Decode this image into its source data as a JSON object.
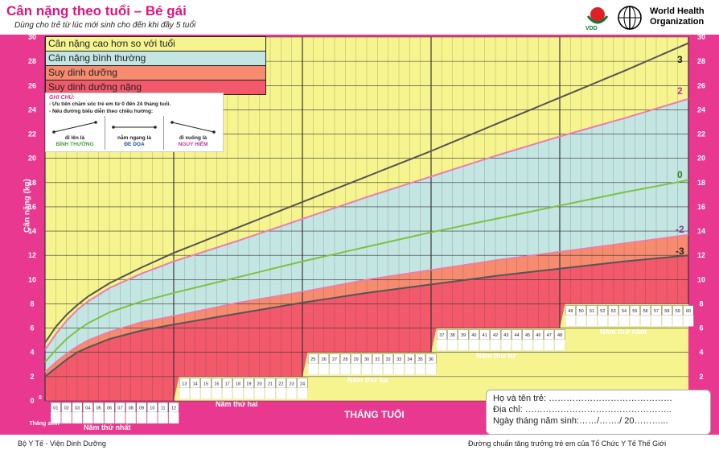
{
  "header": {
    "title": "Cân nặng theo tuổi – Bé gái",
    "subtitle": "Dùng cho trẻ từ lúc mới sinh cho đến khi đầy 5 tuổi",
    "vdd_label": "VDD",
    "who_line1": "World Health",
    "who_line2": "Organization"
  },
  "legend": [
    {
      "label": "Cân nặng cao hơn so với tuổi",
      "color": "#f6f48e"
    },
    {
      "label": "Cân nặng bình thường",
      "color": "#c4e6e3"
    },
    {
      "label": "Suy dinh dưỡng",
      "color": "#f68b70"
    },
    {
      "label": "Suy dinh dưỡng nặng",
      "color": "#f25a6c"
    }
  ],
  "note": {
    "title": "GHI CHÚ:",
    "line1": "- Ưu tiên chăm sóc trẻ em từ 0 đến 24 tháng tuổi.",
    "line2": "- Nếu đường biểu diễn theo chiều hướng:",
    "items": [
      {
        "caption": "đi lên là",
        "value": "BÌNH THƯỜNG",
        "color": "#44a038"
      },
      {
        "caption": "nằm ngang là",
        "value": "ĐE DỌA",
        "color": "#1b4fa3"
      },
      {
        "caption": "đi xuống là",
        "value": "NGUY HIỂM",
        "color": "#c0389b"
      }
    ]
  },
  "colors": {
    "border": "#e8388f",
    "grid": "#333333",
    "curve_outer": "#555555",
    "curve_2": "#f07ab0",
    "curve_0": "#7cc242",
    "curve_m2": "#a35bb0"
  },
  "y_axis_label": "Cân nặng (kg)",
  "x_axis": {
    "title": "THÁNG TUỔI",
    "birth_label": "Tháng sinh",
    "year_labels": [
      "Năm thứ nhất",
      "Năm thứ hai",
      "Năm thứ ba",
      "Năm thứ tư",
      "Năm thứ năm"
    ],
    "month_ticks": [
      "0",
      "01",
      "02",
      "03",
      "04",
      "05",
      "06",
      "07",
      "08",
      "09",
      "10",
      "11",
      "12",
      "13",
      "14",
      "15",
      "16",
      "17",
      "18",
      "19",
      "20",
      "21",
      "22",
      "23",
      "24",
      "25",
      "26",
      "27",
      "28",
      "29",
      "30",
      "31",
      "32",
      "33",
      "34",
      "35",
      "36",
      "37",
      "38",
      "39",
      "40",
      "41",
      "42",
      "43",
      "44",
      "45",
      "46",
      "47",
      "48",
      "49",
      "50",
      "51",
      "52",
      "53",
      "54",
      "55",
      "56",
      "57",
      "58",
      "59",
      "60"
    ]
  },
  "info_box": {
    "name": "Họ và tên trẻ: ……………………………………",
    "address": "Địa chỉ: …………………………………………..",
    "dob": "Ngày tháng năm sinh:……/……./ 20………..."
  },
  "footer": {
    "left": "Bộ Y Tế - Viện Dinh Dưỡng",
    "right": "Đường chuẩn tăng trưởng trẻ em của Tổ Chức Y Tế Thế Giới"
  },
  "chart_data": {
    "type": "line",
    "title": "Cân nặng theo tuổi – Bé gái",
    "xlabel": "THÁNG TUỔI",
    "ylabel": "Cân nặng (kg)",
    "xlim": [
      0,
      60
    ],
    "ylim": [
      0,
      30
    ],
    "y_ticks": [
      0,
      2,
      4,
      6,
      8,
      10,
      12,
      14,
      16,
      18,
      20,
      22,
      24,
      26,
      28,
      30
    ],
    "grid": true,
    "legend_position": "top-left",
    "x": [
      0,
      1,
      2,
      3,
      4,
      6,
      9,
      12,
      18,
      24,
      30,
      36,
      42,
      48,
      54,
      60
    ],
    "series": [
      {
        "name": "3",
        "values": [
          4.8,
          6.1,
          7.1,
          7.9,
          8.6,
          9.7,
          11.0,
          12.2,
          14.3,
          16.4,
          18.5,
          20.6,
          22.8,
          25.0,
          27.2,
          29.5
        ]
      },
      {
        "name": "2",
        "values": [
          4.2,
          5.5,
          6.6,
          7.5,
          8.2,
          9.3,
          10.5,
          11.5,
          13.2,
          15.0,
          16.8,
          18.5,
          20.2,
          21.8,
          23.3,
          24.9
        ]
      },
      {
        "name": "0",
        "values": [
          3.2,
          4.2,
          5.1,
          5.8,
          6.4,
          7.3,
          8.2,
          8.9,
          10.2,
          11.5,
          12.7,
          13.9,
          15.0,
          16.1,
          17.2,
          18.2
        ]
      },
      {
        "name": "-2",
        "values": [
          2.4,
          3.2,
          3.9,
          4.5,
          5.0,
          5.7,
          6.5,
          7.0,
          8.1,
          9.0,
          10.0,
          10.8,
          11.6,
          12.3,
          13.0,
          13.7
        ]
      },
      {
        "name": "-3",
        "values": [
          2.0,
          2.7,
          3.4,
          4.0,
          4.4,
          5.1,
          5.8,
          6.3,
          7.2,
          8.1,
          8.9,
          9.6,
          10.3,
          10.9,
          11.5,
          12.0
        ]
      }
    ]
  }
}
